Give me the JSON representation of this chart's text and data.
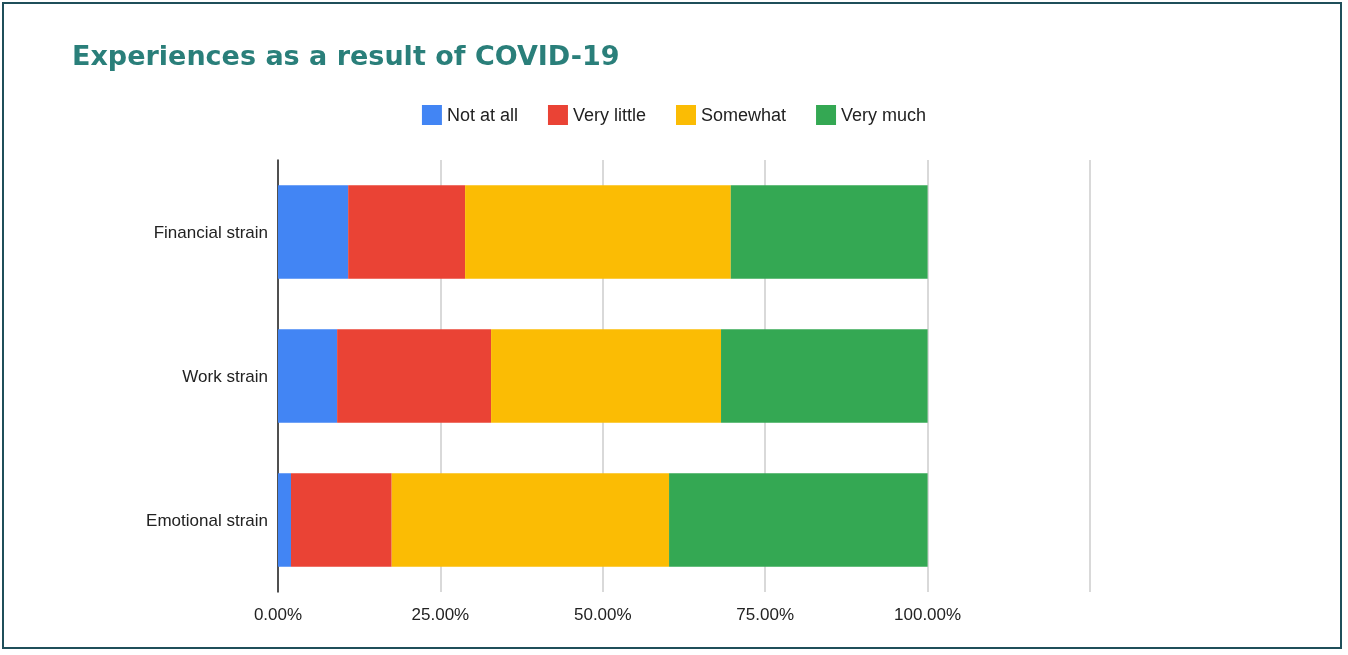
{
  "chart_data": {
    "type": "bar",
    "orientation": "horizontal",
    "stacked": true,
    "title": "Experiences as a result of COVID-19",
    "categories": [
      "Financial strain",
      "Work strain",
      "Emotional strain"
    ],
    "series": [
      {
        "name": "Not at all",
        "color": "#4285f4",
        "values": [
          10.8,
          9.1,
          2.0
        ]
      },
      {
        "name": "Very little",
        "color": "#ea4335",
        "values": [
          18.0,
          23.7,
          15.5
        ]
      },
      {
        "name": "Somewhat",
        "color": "#fbbc04",
        "values": [
          40.9,
          35.4,
          42.7
        ]
      },
      {
        "name": "Very much",
        "color": "#34a853",
        "values": [
          30.3,
          31.8,
          39.8
        ]
      }
    ],
    "xlim": [
      0,
      125
    ],
    "xticks": [
      {
        "value": 0,
        "label": "0.00%"
      },
      {
        "value": 25,
        "label": "25.00%"
      },
      {
        "value": 50,
        "label": "50.00%"
      },
      {
        "value": 75,
        "label": "75.00%"
      },
      {
        "value": 100,
        "label": "100.00%"
      },
      {
        "value": 125,
        "label": null
      }
    ],
    "grid": "x",
    "legend": "top"
  }
}
